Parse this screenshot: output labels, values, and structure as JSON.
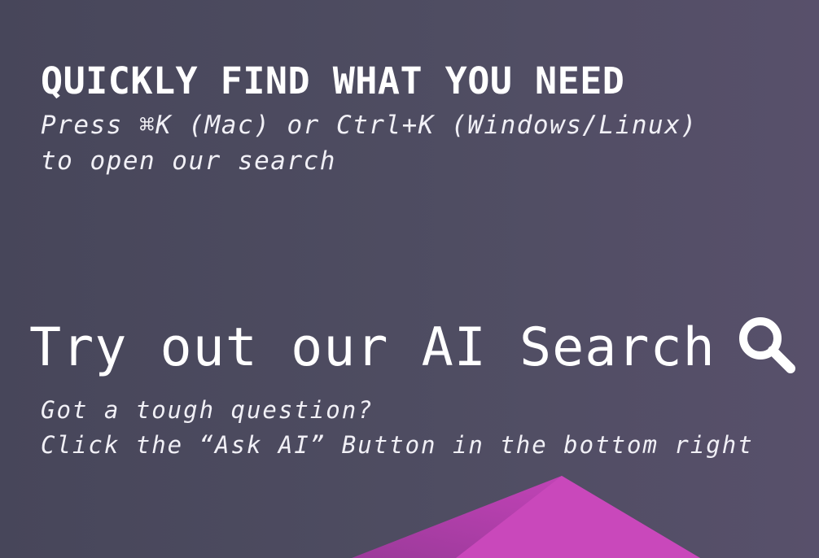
{
  "search_promo": {
    "heading": "QUICKLY FIND WHAT YOU NEED",
    "shortcut_line_1": "Press ⌘K (Mac) or Ctrl+K (Windows/Linux)",
    "shortcut_line_2": "to open our search"
  },
  "ai_promo": {
    "title": "Try out our AI Search",
    "subtitle_line_1": "Got a tough question?",
    "subtitle_line_2": "Click the “Ask AI” Button in the bottom right",
    "icon": "search-icon"
  },
  "colors": {
    "background_start": "#47465a",
    "background_end": "#58506b",
    "accent_magenta": "#c445b8",
    "text": "#ffffff"
  }
}
